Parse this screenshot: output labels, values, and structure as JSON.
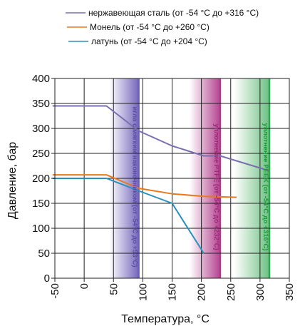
{
  "chart_data": {
    "type": "line",
    "title": "",
    "xlabel": "Температура, °C",
    "ylabel": "Давление, бар",
    "xlim": [
      -50,
      350
    ],
    "ylim": [
      0,
      400
    ],
    "x_ticks": [
      "-50",
      "0",
      "50",
      "100",
      "150",
      "200",
      "250",
      "300",
      "350"
    ],
    "y_ticks": [
      "0",
      "50",
      "100",
      "150",
      "200",
      "250",
      "300",
      "350",
      "400"
    ],
    "grid": true,
    "legend_position": "top",
    "series": [
      {
        "name": "нержавеющая сталь (от -54 °C до +316 °C)",
        "color": "#7a6fae",
        "x": [
          -54,
          38,
          93,
          150,
          204,
          232,
          316
        ],
        "y": [
          345,
          345,
          295,
          265,
          245,
          245,
          215
        ]
      },
      {
        "name": "Монель (от -54 °C до +260 °C)",
        "color": "#e87a1e",
        "x": [
          -54,
          38,
          93,
          150,
          204,
          232,
          260
        ],
        "y": [
          207,
          207,
          180,
          169,
          164,
          163,
          162
        ]
      },
      {
        "name": "латунь (от -54 °C до +204 °C)",
        "color": "#2a8fbd",
        "x": [
          -54,
          38,
          93,
          150,
          204
        ],
        "y": [
          200,
          200,
          175,
          150,
          50
        ]
      }
    ],
    "bands": [
      {
        "label": "игла с мягким наконечником (от -54°C до +93°C)",
        "x_start": 43,
        "x_end": 93,
        "color": "#6f5fb8",
        "text_color": "#5b4ea6"
      },
      {
        "label": "уплотнение PTFE (от -54°C до +232°C)",
        "x_start": 180,
        "x_end": 232,
        "color": "#b23a8c",
        "text_color": "#9b2a78"
      },
      {
        "label": "уплотнение PEEK (от -54°C до +316°C)",
        "x_start": 256,
        "x_end": 316,
        "color": "#2fa64f",
        "text_color": "#1f9a3a"
      }
    ]
  }
}
